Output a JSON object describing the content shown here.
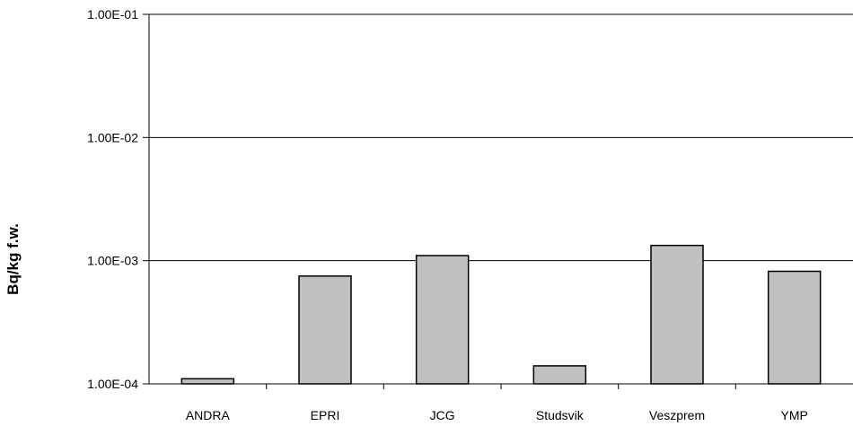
{
  "chart_data": {
    "type": "bar",
    "title": "",
    "xlabel": "",
    "ylabel": "Bq/kg f.w.",
    "yscale": "log",
    "ylim": [
      0.0001,
      0.1
    ],
    "yticks": [
      "1.00E-04",
      "1.00E-03",
      "1.00E-02",
      "1.00E-01"
    ],
    "categories": [
      "ANDRA",
      "EPRI",
      "JCG",
      "Studsvik",
      "Veszprem",
      "YMP"
    ],
    "values": [
      0.00011,
      0.00075,
      0.0011,
      0.00014,
      0.00133,
      0.00082
    ],
    "grid": true,
    "legend": "none",
    "colors": {
      "bar_fill": "#c0c0c0",
      "bar_stroke": "#000000",
      "grid": "#000000",
      "axis": "#000000"
    }
  }
}
